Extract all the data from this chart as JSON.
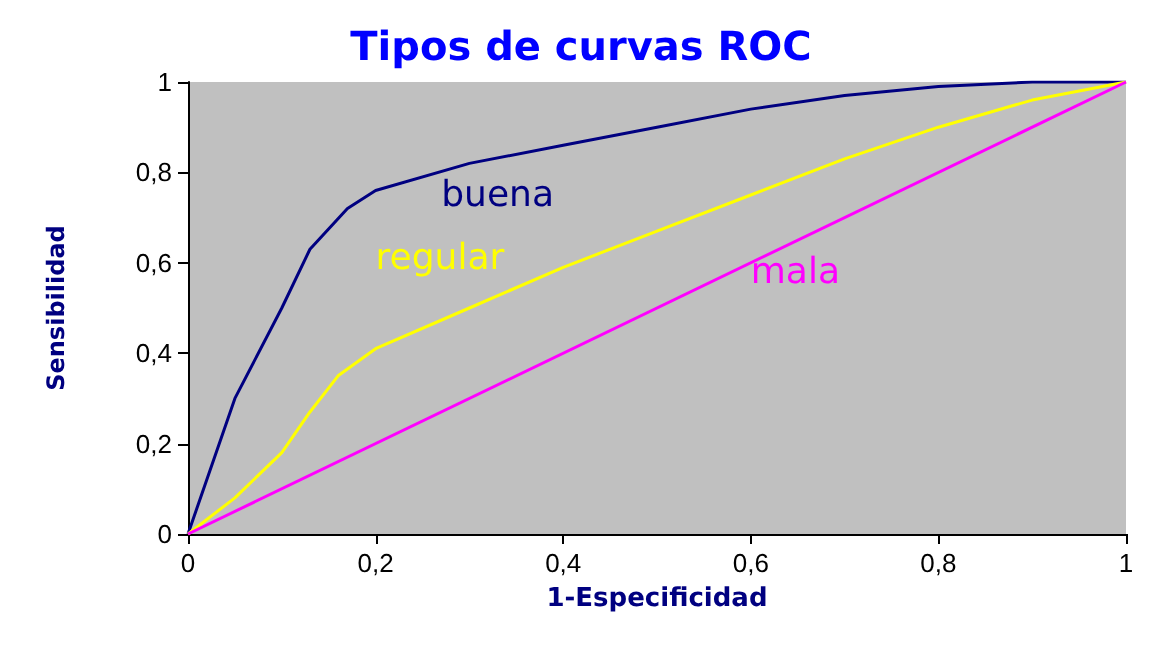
{
  "chart_data": {
    "type": "line",
    "title": "Tipos de curvas ROC",
    "xlabel": "1-Especificidad",
    "ylabel": "Sensibilidad",
    "xlim": [
      0,
      1
    ],
    "ylim": [
      0,
      1
    ],
    "xticks": [
      0,
      {
        "value": 0.2,
        "label": "0,2"
      },
      {
        "value": 0.4,
        "label": "0,4"
      },
      {
        "value": 0.6,
        "label": "0,6"
      },
      {
        "value": 0.8,
        "label": "0,8"
      },
      1
    ],
    "yticks": [
      0,
      {
        "value": 0.2,
        "label": "0,2"
      },
      {
        "value": 0.4,
        "label": "0,4"
      },
      {
        "value": 0.6,
        "label": "0,6"
      },
      {
        "value": 0.8,
        "label": "0,8"
      },
      1
    ],
    "grid": false,
    "legend": false,
    "marker": "none",
    "line_style": "solid",
    "series": [
      {
        "name": "buena",
        "color": "#000080",
        "x": [
          0,
          0.05,
          0.1,
          0.13,
          0.17,
          0.2,
          0.3,
          0.4,
          0.5,
          0.6,
          0.7,
          0.8,
          0.9,
          1
        ],
        "values": [
          0,
          0.3,
          0.5,
          0.63,
          0.72,
          0.76,
          0.82,
          0.86,
          0.9,
          0.94,
          0.97,
          0.99,
          1,
          1
        ]
      },
      {
        "name": "regular",
        "color": "#ffff00",
        "x": [
          0,
          0.05,
          0.1,
          0.13,
          0.16,
          0.2,
          0.3,
          0.4,
          0.5,
          0.6,
          0.7,
          0.8,
          0.9,
          1
        ],
        "values": [
          0,
          0.08,
          0.18,
          0.27,
          0.35,
          0.41,
          0.5,
          0.59,
          0.67,
          0.75,
          0.83,
          0.9,
          0.96,
          1
        ]
      },
      {
        "name": "mala",
        "color": "#ff00ff",
        "x": [
          0,
          1
        ],
        "values": [
          0,
          1
        ]
      }
    ]
  }
}
